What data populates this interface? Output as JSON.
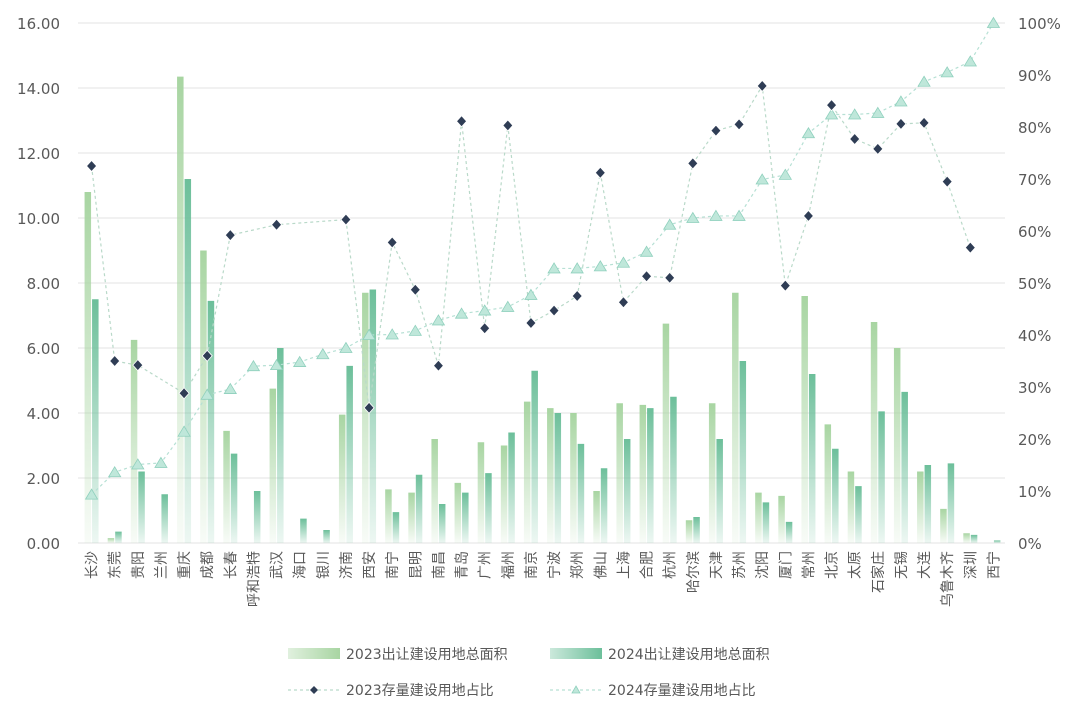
{
  "chart_data": {
    "type": "bar",
    "categories": [
      "长沙",
      "东莞",
      "贵阳",
      "兰州",
      "重庆",
      "成都",
      "长春",
      "呼和浩特",
      "武汉",
      "海口",
      "银川",
      "济南",
      "西安",
      "南宁",
      "昆明",
      "南昌",
      "青岛",
      "广州",
      "福州",
      "南京",
      "宁波",
      "郑州",
      "佛山",
      "上海",
      "合肥",
      "杭州",
      "哈尔滨",
      "天津",
      "苏州",
      "沈阳",
      "厦门",
      "常州",
      "北京",
      "太原",
      "石家庄",
      "无锡",
      "大连",
      "乌鲁木齐",
      "深圳",
      "西宁"
    ],
    "left_axis": {
      "ticks": [
        "0.00",
        "2.00",
        "4.00",
        "6.00",
        "8.00",
        "10.00",
        "12.00",
        "14.00",
        "16.00"
      ],
      "ylim": [
        0,
        16
      ]
    },
    "right_axis": {
      "ticks": [
        "0%",
        "10%",
        "20%",
        "30%",
        "40%",
        "50%",
        "60%",
        "70%",
        "80%",
        "90%",
        "100%"
      ],
      "ylim": [
        0,
        100
      ]
    },
    "series": [
      {
        "name": "2023出让建设用地总面积",
        "kind": "bar",
        "axis": "left",
        "values": [
          10.8,
          0.15,
          6.25,
          0,
          14.35,
          9.0,
          3.45,
          0,
          4.75,
          0,
          0,
          3.95,
          7.7,
          1.65,
          1.55,
          3.2,
          1.85,
          3.1,
          3.0,
          4.35,
          4.15,
          4.0,
          1.6,
          4.3,
          4.25,
          6.75,
          0.7,
          4.3,
          7.7,
          1.55,
          1.45,
          7.6,
          3.65,
          2.2,
          6.8,
          6.0,
          2.2,
          1.05,
          0.3,
          0
        ]
      },
      {
        "name": "2024出让建设用地总面积",
        "kind": "bar",
        "axis": "left",
        "values": [
          7.5,
          0.35,
          2.2,
          1.5,
          11.2,
          7.45,
          2.75,
          1.6,
          6.0,
          0.75,
          0.4,
          5.45,
          7.8,
          0.95,
          2.1,
          1.2,
          1.55,
          2.15,
          3.4,
          5.3,
          4.0,
          3.05,
          2.3,
          3.2,
          4.15,
          4.5,
          0.8,
          3.2,
          5.6,
          1.25,
          0.65,
          5.2,
          2.9,
          1.75,
          4.05,
          4.65,
          2.4,
          2.45,
          0.25,
          0.08
        ]
      },
      {
        "name": "2023存量建设用地占比",
        "kind": "line",
        "axis": "right",
        "values": [
          72.5,
          35,
          34.2,
          null,
          28.8,
          36,
          59.2,
          null,
          61.2,
          null,
          null,
          62.2,
          26,
          57.8,
          48.7,
          34.1,
          81.1,
          41.3,
          80.3,
          42.3,
          44.7,
          47.5,
          71.2,
          46.3,
          51.3,
          51,
          73,
          79.3,
          80.5,
          87.9,
          49.5,
          62.9,
          84.2,
          77.7,
          75.8,
          80.6,
          80.8,
          69.5,
          56.8,
          null
        ]
      },
      {
        "name": "2024存量建设用地占比",
        "kind": "line",
        "axis": "right",
        "values": [
          9.3,
          13.6,
          15.1,
          15.4,
          21.4,
          28.5,
          29.6,
          34.0,
          34.2,
          34.8,
          36.3,
          37.5,
          40.0,
          40.1,
          40.8,
          42.8,
          44.1,
          44.7,
          45.4,
          47.7,
          52.8,
          52.8,
          53.2,
          53.9,
          56.0,
          61.2,
          62.5,
          62.9,
          62.9,
          69.9,
          70.8,
          78.8,
          82.4,
          82.4,
          82.7,
          84.9,
          88.7,
          90.5,
          92.6,
          100
        ]
      }
    ],
    "legend_position": "bottom",
    "grid": true
  },
  "colors": {
    "bar2023": "#a8d5a2",
    "bar2024": "#6cbf9a",
    "line2023": "#b9d9c9",
    "marker2023": "#2f3d55",
    "line2024": "#b6e0d4",
    "marker2024": "#bfe7da",
    "marker2024_stroke": "#8fd0bd",
    "grid": "#e3e3e3",
    "axis_text": "#595959"
  }
}
